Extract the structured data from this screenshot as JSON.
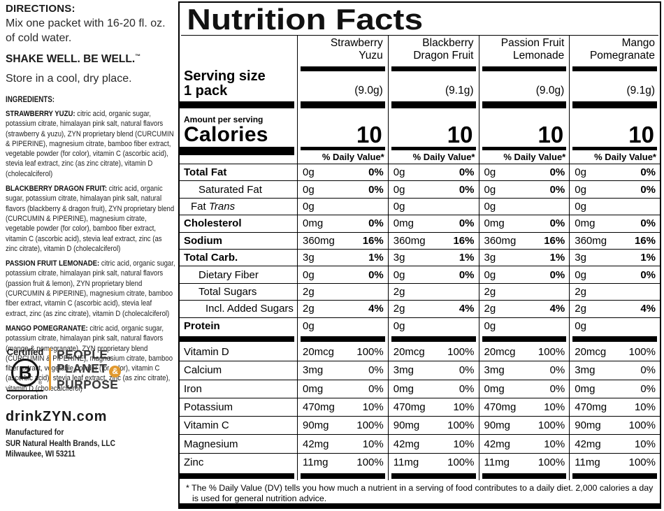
{
  "accent_color": "#E1992F",
  "left": {
    "directions_heading": "DIRECTIONS:",
    "directions_body": "Mix one packet with 16-20 fl. oz. of cold water.",
    "shake_heading": "SHAKE WELL. BE WELL.",
    "shake_tm": "™",
    "store_note": "Store in a cool, dry place.",
    "ingredients_heading": "INGREDIENTS:",
    "ingredients": [
      {
        "name": "STRAWBERRY YUZU:",
        "text": "citric acid, organic sugar, potassium citrate, himalayan pink salt, natural flavors (strawberry & yuzu), ZYN proprietary blend (CURCUMIN & PIPERINE), magnesium citrate, bamboo fiber extract, vegetable powder (for color), vitamin C (ascorbic acid), stevia leaf extract, zinc (as zinc citrate), vitamin D (cholecalciferol)"
      },
      {
        "name": "BLACKBERRY DRAGON FRUIT:",
        "text": "citric acid, organic sugar, potassium citrate, himalayan pink salt, natural flavors (blackberry & dragon fruit), ZYN proprietary blend (CURCUMIN & PIPERINE), magnesium citrate, vegetable powder (for color), bamboo fiber extract, vitamin C (ascorbic acid), stevia leaf extract, zinc (as zinc citrate), vitamin D (cholecalciferol)"
      },
      {
        "name": "PASSION FRUIT LEMONADE:",
        "text": "citric acid, organic sugar, potassium citrate, himalayan pink salt, natural flavors (passion fruit & lemon), ZYN proprietary blend (CURCUMIN & PIPERINE), magnesium citrate, bamboo fiber extract, vitamin C (ascorbic acid), stevia leaf extract, zinc (as zinc citrate), vitamin D (cholecalciferol)"
      },
      {
        "name": "MANGO POMEGRANATE:",
        "text": "citric acid, organic sugar, potassium citrate, himalayan pink salt, natural flavors (mango & pomegranate), ZYN proprietary blend (CURCUMIN & PIPERINE), magnesium citrate, bamboo fiber extract, vegetable powder (for color), vitamin C (ascorbic acid), stevia leaf extract, zinc (as zinc citrate), vitamin D (cholecalciferol)"
      }
    ],
    "bcorp": {
      "certified": "Certified",
      "letter": "B",
      "registered": "®",
      "corporation": "Corporation",
      "tagline_line1": "PEOPLE,",
      "tagline_line2": "PLANET",
      "ampersand": "&",
      "tagline_line3": "PURPOSE"
    },
    "website": "drinkZYN.com",
    "manufacturer_lines": [
      "Manufactured for",
      "SUR Natural Health Brands, LLC",
      "Milwaukee, WI 53211"
    ]
  },
  "nutrition": {
    "title": "Nutrition Facts",
    "flavors": [
      {
        "line1": "Strawberry",
        "line2": "Yuzu",
        "weight": "(9.0g)"
      },
      {
        "line1": "Blackberry",
        "line2": "Dragon Fruit",
        "weight": "(9.1g)"
      },
      {
        "line1": "Passion Fruit",
        "line2": "Lemonade",
        "weight": "(9.0g)"
      },
      {
        "line1": "Mango",
        "line2": "Pomegranate",
        "weight": "(9.1g)"
      }
    ],
    "serving_size_label": "Serving size",
    "serving_size_value": "1 pack",
    "amount_per_serving_label": "Amount per serving",
    "calories_label": "Calories",
    "calories_value": "10",
    "daily_value_header": "% Daily Value*",
    "nutrients": [
      {
        "label": "Total Fat",
        "italic": "",
        "style": "bold",
        "indent": 0,
        "amount": "0g",
        "dv": "0%"
      },
      {
        "label": "Saturated Fat",
        "italic": "",
        "style": "regular",
        "indent": 2,
        "amount": "0g",
        "dv": "0%"
      },
      {
        "label": "Fat",
        "italic": "Trans",
        "style": "regular",
        "indent": 1,
        "amount": "0g",
        "dv": ""
      },
      {
        "label": "Cholesterol",
        "italic": "",
        "style": "bold",
        "indent": 0,
        "amount": "0mg",
        "dv": "0%"
      },
      {
        "label": "Sodium",
        "italic": "",
        "style": "bold",
        "indent": 0,
        "amount": "360mg",
        "dv": "16%"
      },
      {
        "label": "Total Carb.",
        "italic": "",
        "style": "bold",
        "indent": 0,
        "amount": "3g",
        "dv": "1%"
      },
      {
        "label": "Dietary Fiber",
        "italic": "",
        "style": "regular",
        "indent": 2,
        "amount": "0g",
        "dv": "0%"
      },
      {
        "label": "Total Sugars",
        "italic": "",
        "style": "regular",
        "indent": 2,
        "amount": "2g",
        "dv": ""
      },
      {
        "label": "Incl. Added Sugars",
        "italic": "",
        "style": "regular",
        "indent": 3,
        "amount": "2g",
        "dv": "4%"
      },
      {
        "label": "Protein",
        "italic": "",
        "style": "bold",
        "indent": 0,
        "amount": "0g",
        "dv": ""
      }
    ],
    "micronutrients": [
      {
        "label": "Vitamin D",
        "amount": "20mcg",
        "dv": "100%"
      },
      {
        "label": "Calcium",
        "amount": "3mg",
        "dv": "0%"
      },
      {
        "label": "Iron",
        "amount": "0mg",
        "dv": "0%"
      },
      {
        "label": "Potassium",
        "amount": "470mg",
        "dv": "10%"
      },
      {
        "label": "Vitamin C",
        "amount": "90mg",
        "dv": "100%"
      },
      {
        "label": "Magnesium",
        "amount": "42mg",
        "dv": "10%"
      },
      {
        "label": "Zinc",
        "amount": "11mg",
        "dv": "100%"
      }
    ],
    "footnote_star": "*",
    "footnote": "The % Daily Value (DV) tells you how much a nutrient in a serving of food contributes to a daily diet. 2,000 calories a day is used for general nutrition advice."
  }
}
